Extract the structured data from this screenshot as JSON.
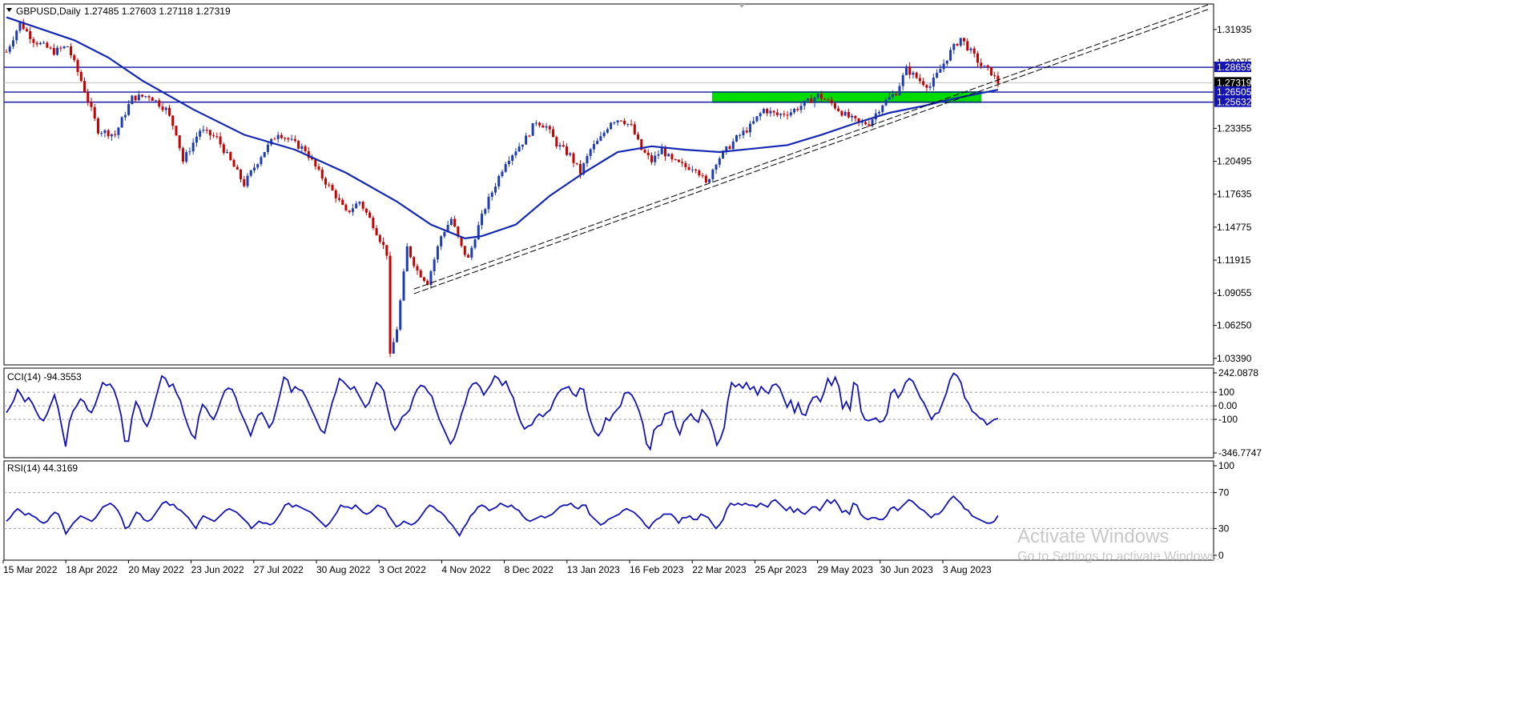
{
  "header": {
    "symbol_label": "GBPUSD,Daily",
    "ohlc_label": "1.27485 1.27603 1.27118 1.27319"
  },
  "colors": {
    "up_candle": "#1e3cb4",
    "down_candle": "#c80000",
    "ma_line": "#1428b4",
    "level_line": "#1414a0",
    "zone": "#00dc00",
    "indicator_line": "#1414b4",
    "price_tag_bg": "#1414b4",
    "last_price_bg": "#000000"
  },
  "chart_data": [
    {
      "type": "candlestick",
      "title": "GBPUSD,Daily",
      "x_tick_labels": [
        "15 Mar 2022",
        "18 Apr 2022",
        "20 May 2022",
        "23 Jun 2022",
        "27 Jul 2022",
        "30 Aug 2022",
        "3 Oct 2022",
        "4 Nov 2022",
        "8 Dec 2022",
        "13 Jan 2023",
        "16 Feb 2023",
        "22 Mar 2023",
        "25 Apr 2023",
        "29 May 2023",
        "30 Jun 2023",
        "3 Aug 2023"
      ],
      "y_tick_labels": [
        "1.31935",
        "1.29075",
        "1.23355",
        "1.20495",
        "1.17635",
        "1.14775",
        "1.11915",
        "1.09055",
        "1.06250",
        "1.03390"
      ],
      "ylim": [
        1.0282,
        1.3415
      ],
      "last_close": 1.27319,
      "level_tags": [
        "1.28659",
        "1.27319",
        "1.26505",
        "1.25632"
      ],
      "horizontal_levels": [
        1.28659,
        1.26505,
        1.25632
      ],
      "support_zone": [
        1.2563,
        1.265
      ],
      "price_path": [
        [
          0,
          1.3
        ],
        [
          4,
          1.325
        ],
        [
          8,
          1.31
        ],
        [
          14,
          1.3
        ],
        [
          18,
          1.305
        ],
        [
          22,
          1.275
        ],
        [
          27,
          1.232
        ],
        [
          32,
          1.228
        ],
        [
          37,
          1.26
        ],
        [
          42,
          1.262
        ],
        [
          47,
          1.25
        ],
        [
          50,
          1.23
        ],
        [
          52,
          1.205
        ],
        [
          57,
          1.232
        ],
        [
          62,
          1.225
        ],
        [
          66,
          1.205
        ],
        [
          70,
          1.185
        ],
        [
          75,
          1.21
        ],
        [
          80,
          1.23
        ],
        [
          85,
          1.22
        ],
        [
          88,
          1.215
        ],
        [
          92,
          1.195
        ],
        [
          97,
          1.175
        ],
        [
          100,
          1.16
        ],
        [
          104,
          1.17
        ],
        [
          108,
          1.15
        ],
        [
          112,
          1.125
        ],
        [
          113,
          1.035
        ],
        [
          115,
          1.06
        ],
        [
          118,
          1.13
        ],
        [
          121,
          1.11
        ],
        [
          124,
          1.1
        ],
        [
          126,
          1.12
        ],
        [
          128,
          1.14
        ],
        [
          131,
          1.155
        ],
        [
          134,
          1.13
        ],
        [
          136,
          1.12
        ],
        [
          138,
          1.14
        ],
        [
          141,
          1.165
        ],
        [
          144,
          1.185
        ],
        [
          147,
          1.205
        ],
        [
          150,
          1.215
        ],
        [
          153,
          1.225
        ],
        [
          156,
          1.24
        ],
        [
          159,
          1.235
        ],
        [
          162,
          1.22
        ],
        [
          166,
          1.21
        ],
        [
          169,
          1.195
        ],
        [
          172,
          1.215
        ],
        [
          175,
          1.225
        ],
        [
          178,
          1.24
        ],
        [
          181,
          1.242
        ],
        [
          184,
          1.235
        ],
        [
          187,
          1.215
        ],
        [
          190,
          1.205
        ],
        [
          193,
          1.215
        ],
        [
          196,
          1.205
        ],
        [
          200,
          1.2
        ],
        [
          203,
          1.2
        ],
        [
          206,
          1.185
        ],
        [
          209,
          1.205
        ],
        [
          212,
          1.215
        ],
        [
          215,
          1.225
        ],
        [
          219,
          1.235
        ],
        [
          223,
          1.25
        ],
        [
          227,
          1.245
        ],
        [
          231,
          1.248
        ],
        [
          235,
          1.255
        ],
        [
          239,
          1.262
        ],
        [
          243,
          1.255
        ],
        [
          247,
          1.245
        ],
        [
          251,
          1.238
        ],
        [
          254,
          1.238
        ],
        [
          258,
          1.255
        ],
        [
          262,
          1.265
        ],
        [
          265,
          1.285
        ],
        [
          269,
          1.275
        ],
        [
          272,
          1.27
        ],
        [
          275,
          1.285
        ],
        [
          278,
          1.3
        ],
        [
          281,
          1.312
        ],
        [
          284,
          1.3
        ],
        [
          287,
          1.288
        ],
        [
          290,
          1.282
        ],
        [
          292,
          1.27319
        ]
      ],
      "ma_path": [
        [
          0,
          1.33
        ],
        [
          10,
          1.32
        ],
        [
          20,
          1.31
        ],
        [
          30,
          1.295
        ],
        [
          40,
          1.275
        ],
        [
          55,
          1.25
        ],
        [
          70,
          1.228
        ],
        [
          85,
          1.215
        ],
        [
          100,
          1.195
        ],
        [
          115,
          1.17
        ],
        [
          125,
          1.15
        ],
        [
          135,
          1.138
        ],
        [
          140,
          1.14
        ],
        [
          150,
          1.15
        ],
        [
          160,
          1.175
        ],
        [
          170,
          1.195
        ],
        [
          180,
          1.213
        ],
        [
          190,
          1.218
        ],
        [
          200,
          1.215
        ],
        [
          210,
          1.213
        ],
        [
          220,
          1.216
        ],
        [
          230,
          1.219
        ],
        [
          240,
          1.228
        ],
        [
          250,
          1.238
        ],
        [
          260,
          1.247
        ],
        [
          270,
          1.253
        ],
        [
          280,
          1.26
        ],
        [
          292,
          1.267
        ]
      ],
      "trendlines": [
        {
          "start": [
            120,
            1.094
          ],
          "end": [
            354,
            1.341
          ]
        },
        {
          "start": [
            120,
            1.09
          ],
          "end": [
            354,
            1.337
          ]
        }
      ]
    },
    {
      "type": "line",
      "title": "CCI(14) -94.3553",
      "y_tick_labels": [
        "242.0878",
        "100",
        "0.00",
        "-100",
        "-346.7747"
      ],
      "ylim": [
        -346.7747,
        242.0878
      ],
      "levels": [
        100,
        0,
        -100
      ],
      "series": [
        {
          "name": "CCI(14)",
          "values": [
            -50,
            -10,
            40,
            120,
            80,
            30,
            60,
            20,
            -40,
            -90,
            -110,
            -60,
            10,
            80,
            -20,
            -160,
            -300,
            -120,
            -40,
            0,
            50,
            30,
            -30,
            -50,
            10,
            90,
            170,
            150,
            160,
            120,
            40,
            -70,
            -260,
            -260,
            -80,
            30,
            -20,
            -110,
            -150,
            -90,
            20,
            120,
            220,
            200,
            140,
            160,
            90,
            40,
            -60,
            -140,
            -210,
            -240,
            -80,
            10,
            -20,
            -70,
            -100,
            -40,
            40,
            110,
            130,
            120,
            60,
            -30,
            -90,
            -150,
            -220,
            -140,
            -70,
            -50,
            -100,
            -160,
            -120,
            -20,
            90,
            210,
            190,
            100,
            140,
            120,
            110,
            60,
            0,
            -60,
            -120,
            -180,
            -200,
            -90,
            20,
            100,
            200,
            180,
            150,
            120,
            140,
            90,
            40,
            -10,
            20,
            100,
            170,
            150,
            110,
            -20,
            -130,
            -180,
            -140,
            -80,
            -60,
            -30,
            60,
            120,
            150,
            140,
            100,
            70,
            -20,
            -100,
            -160,
            -220,
            -280,
            -240,
            -160,
            -60,
            20,
            120,
            160,
            170,
            140,
            80,
            120,
            160,
            220,
            200,
            150,
            180,
            110,
            60,
            -40,
            -120,
            -170,
            -150,
            -140,
            -90,
            -60,
            -80,
            -50,
            -30,
            40,
            90,
            120,
            130,
            140,
            90,
            70,
            130,
            120,
            -30,
            -120,
            -190,
            -220,
            -180,
            -90,
            -110,
            -60,
            -30,
            0,
            90,
            100,
            80,
            30,
            -40,
            -130,
            -280,
            -320,
            -180,
            -150,
            -140,
            -60,
            -50,
            -40,
            -150,
            -210,
            -120,
            -90,
            -60,
            -100,
            -120,
            -30,
            -60,
            -100,
            -180,
            -290,
            -240,
            -160,
            40,
            170,
            140,
            160,
            130,
            170,
            120,
            140,
            80,
            140,
            110,
            90,
            150,
            160,
            130,
            60,
            -10,
            40,
            -50,
            20,
            -60,
            -70,
            10,
            60,
            70,
            30,
            100,
            200,
            150,
            210,
            140,
            -20,
            30,
            -30,
            170,
            150,
            -40,
            -100,
            -110,
            -100,
            -90,
            -120,
            -110,
            -60,
            90,
            120,
            60,
            100,
            170,
            200,
            180,
            120,
            60,
            20,
            -40,
            -100,
            -60,
            -50,
            20,
            90,
            190,
            240,
            220,
            170,
            60,
            20,
            -40,
            -60,
            -90,
            -100,
            -140,
            -120,
            -100,
            -94.3553
          ]
        }
      ]
    },
    {
      "type": "line",
      "title": "RSI(14) 44.3169",
      "y_tick_labels": [
        "100",
        "70",
        "30",
        "0"
      ],
      "ylim": [
        0,
        100
      ],
      "levels": [
        70,
        30
      ],
      "series": [
        {
          "name": "RSI(14)",
          "values": [
            38,
            42,
            48,
            52,
            49,
            45,
            47,
            44,
            42,
            38,
            36,
            38,
            44,
            48,
            46,
            36,
            24,
            30,
            36,
            40,
            44,
            42,
            40,
            38,
            42,
            48,
            54,
            56,
            58,
            55,
            50,
            42,
            30,
            32,
            40,
            48,
            46,
            40,
            38,
            40,
            46,
            52,
            58,
            60,
            56,
            57,
            52,
            50,
            46,
            42,
            36,
            30,
            38,
            44,
            42,
            40,
            38,
            42,
            46,
            50,
            52,
            50,
            48,
            44,
            40,
            36,
            30,
            34,
            38,
            36,
            36,
            34,
            36,
            42,
            48,
            56,
            58,
            54,
            56,
            54,
            52,
            50,
            48,
            44,
            40,
            36,
            32,
            36,
            42,
            48,
            56,
            54,
            54,
            52,
            56,
            52,
            48,
            46,
            48,
            52,
            56,
            54,
            52,
            44,
            38,
            32,
            34,
            38,
            36,
            34,
            36,
            40,
            46,
            52,
            56,
            54,
            50,
            48,
            44,
            38,
            34,
            28,
            22,
            30,
            36,
            44,
            48,
            54,
            56,
            54,
            50,
            52,
            54,
            58,
            56,
            54,
            56,
            52,
            50,
            44,
            40,
            38,
            40,
            42,
            44,
            42,
            44,
            46,
            50,
            54,
            56,
            56,
            58,
            54,
            52,
            56,
            56,
            46,
            42,
            38,
            34,
            36,
            40,
            42,
            44,
            46,
            50,
            52,
            50,
            48,
            44,
            40,
            34,
            30,
            36,
            40,
            42,
            46,
            46,
            46,
            42,
            36,
            42,
            42,
            44,
            40,
            40,
            46,
            44,
            42,
            36,
            30,
            34,
            40,
            52,
            58,
            56,
            58,
            56,
            58,
            56,
            56,
            54,
            58,
            56,
            54,
            60,
            62,
            58,
            54,
            50,
            54,
            48,
            52,
            48,
            46,
            50,
            54,
            54,
            50,
            56,
            62,
            58,
            62,
            56,
            48,
            50,
            46,
            58,
            56,
            46,
            42,
            40,
            42,
            42,
            40,
            40,
            44,
            52,
            54,
            50,
            54,
            58,
            62,
            60,
            56,
            52,
            50,
            46,
            42,
            46,
            46,
            50,
            56,
            62,
            66,
            62,
            58,
            52,
            50,
            44,
            42,
            40,
            38,
            36,
            36,
            38,
            44.3169
          ]
        }
      ]
    }
  ],
  "watermark": {
    "line1": "Activate Windows",
    "line2": "Go to Settings to activate Windows."
  }
}
